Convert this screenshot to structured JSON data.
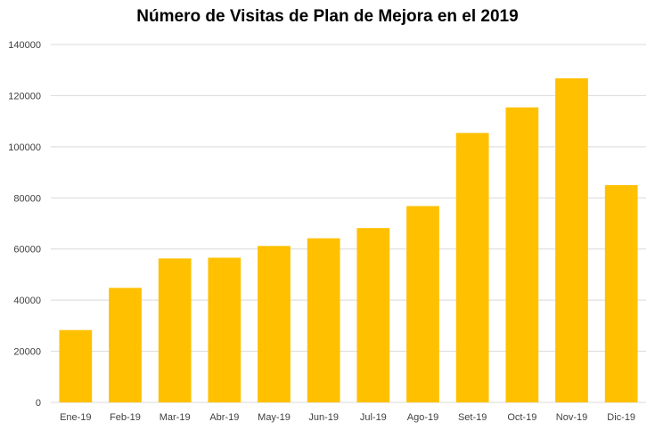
{
  "chart_data": {
    "type": "bar",
    "title": "Número de Visitas de Plan de Mejora en el 2019",
    "xlabel": "",
    "ylabel": "",
    "categories": [
      "Ene-19",
      "Feb-19",
      "Mar-19",
      "Abr-19",
      "May-19",
      "Jun-19",
      "Jul-19",
      "Ago-19",
      "Set-19",
      "Oct-19",
      "Nov-19",
      "Dic-19"
    ],
    "values": [
      28300,
      44800,
      56300,
      56600,
      61200,
      64200,
      68200,
      76800,
      105400,
      115400,
      126800,
      85000
    ],
    "ylim": [
      0,
      140000
    ],
    "yticks": [
      "0",
      "20000",
      "40000",
      "60000",
      "80000",
      "100000",
      "120000",
      "140000"
    ],
    "grid": true,
    "legend": "none",
    "bar_color": "#FFC000",
    "grid_color": "#D9D9D9"
  }
}
